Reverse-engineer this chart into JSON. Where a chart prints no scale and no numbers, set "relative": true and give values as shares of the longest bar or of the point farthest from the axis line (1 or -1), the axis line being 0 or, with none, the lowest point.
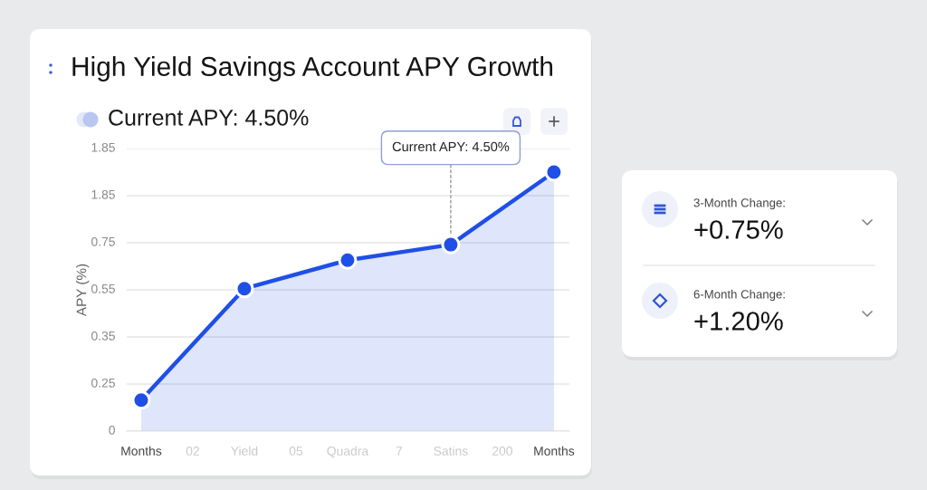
{
  "chart_data": [
    {
      "type": "area",
      "title": "High Yield Savings Account APY Growth",
      "subtitle": "Current APY: 4.50%",
      "ylabel": "APY (%)",
      "relative": true,
      "categories": [
        "Months",
        "02",
        "Yield",
        "05",
        "Quadra",
        "7",
        "Satins",
        "200",
        "Months"
      ],
      "series": [
        {
          "color": "#1f4fe6",
          "values": [
            0.12,
            null,
            0.55,
            null,
            0.66,
            null,
            0.72,
            null,
            1
          ]
        }
      ],
      "grid": "y",
      "marker": "circle",
      "annotations": [
        "1.85",
        "1.85",
        "0.75",
        "0.55",
        "0.35",
        "0.25",
        "0",
        {
          "text": "Current APY: 4.50%",
          "x": "Satins",
          "y": 0.72
        }
      ]
    },
    {
      "type": "other",
      "annotations": [
        "3-Month Change:",
        "+0.75%",
        "6-Month Change:",
        "+1.20%"
      ]
    }
  ]
}
